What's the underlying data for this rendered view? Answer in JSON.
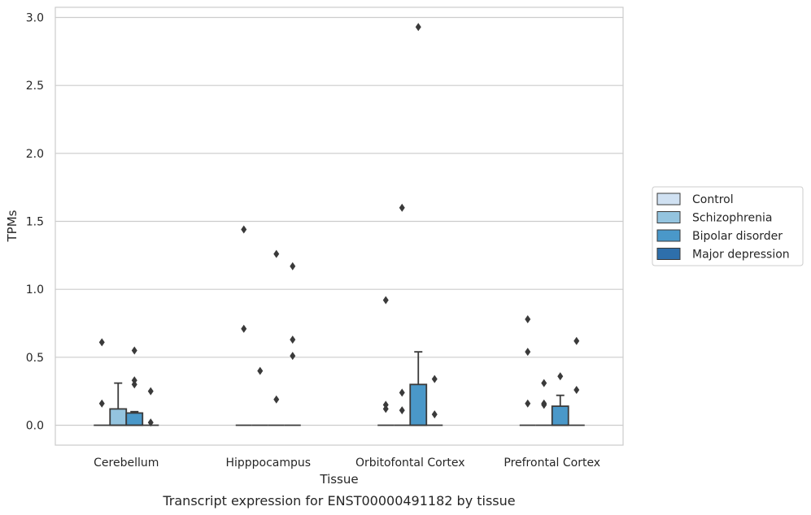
{
  "chart_data": {
    "type": "box",
    "title": "",
    "caption": "Transcript expression for ENST00000491182 by tissue",
    "xlabel": "Tissue",
    "ylabel": "TPMs",
    "ylim": [
      -0.14,
      3.07
    ],
    "yticks": [
      0.0,
      0.5,
      1.0,
      1.5,
      2.0,
      2.5,
      3.0
    ],
    "ytick_labels": [
      "0.0",
      "0.5",
      "1.0",
      "1.5",
      "2.0",
      "2.5",
      "3.0"
    ],
    "grid": "horizontal",
    "legend_position": "right",
    "categories": [
      "Cerebellum",
      "Hipppocampus",
      "Orbitofontal Cortex",
      "Prefrontal Cortex"
    ],
    "series": [
      {
        "name": "Control",
        "color": "#d0e1f2",
        "boxes": [
          {
            "q1": 0,
            "median": 0,
            "q3": 0,
            "whisker_low": 0,
            "whisker_high": 0,
            "outliers": [
              0.61,
              0.16
            ]
          },
          {
            "q1": 0,
            "median": 0,
            "q3": 0,
            "whisker_low": 0,
            "whisker_high": 0,
            "outliers": [
              1.44,
              0.71
            ]
          },
          {
            "q1": 0,
            "median": 0,
            "q3": 0,
            "whisker_low": 0,
            "whisker_high": 0,
            "outliers": [
              0.92,
              0.15,
              0.12
            ]
          },
          {
            "q1": 0,
            "median": 0,
            "q3": 0,
            "whisker_low": 0,
            "whisker_high": 0,
            "outliers": [
              0.78,
              0.54,
              0.16
            ]
          }
        ]
      },
      {
        "name": "Schizophrenia",
        "color": "#94c4df",
        "boxes": [
          {
            "q1": 0,
            "median": 0,
            "q3": 0.12,
            "whisker_low": 0,
            "whisker_high": 0.31,
            "outliers": []
          },
          {
            "q1": 0,
            "median": 0,
            "q3": 0,
            "whisker_low": 0,
            "whisker_high": 0,
            "outliers": [
              0.4
            ]
          },
          {
            "q1": 0,
            "median": 0,
            "q3": 0,
            "whisker_low": 0,
            "whisker_high": 0,
            "outliers": [
              1.6,
              0.24,
              0.11
            ]
          },
          {
            "q1": 0,
            "median": 0,
            "q3": 0,
            "whisker_low": 0,
            "whisker_high": 0,
            "outliers": [
              0.31,
              0.16,
              0.15
            ]
          }
        ]
      },
      {
        "name": "Bipolar disorder",
        "color": "#4a98c9",
        "boxes": [
          {
            "q1": 0,
            "median": 0,
            "q3": 0.09,
            "whisker_low": 0,
            "whisker_high": 0.1,
            "outliers": [
              0.55,
              0.33,
              0.3
            ]
          },
          {
            "q1": 0,
            "median": 0,
            "q3": 0,
            "whisker_low": 0,
            "whisker_high": 0,
            "outliers": [
              1.26,
              0.19
            ]
          },
          {
            "q1": 0,
            "median": 0,
            "q3": 0.3,
            "whisker_low": 0,
            "whisker_high": 0.54,
            "outliers": [
              2.93
            ]
          },
          {
            "q1": 0,
            "median": 0,
            "q3": 0.14,
            "whisker_low": 0,
            "whisker_high": 0.22,
            "outliers": [
              0.36
            ]
          }
        ]
      },
      {
        "name": "Major depression",
        "color": "#2e6fab",
        "boxes": [
          {
            "q1": 0,
            "median": 0,
            "q3": 0,
            "whisker_low": 0,
            "whisker_high": 0,
            "outliers": [
              0.25,
              0.02
            ]
          },
          {
            "q1": 0,
            "median": 0,
            "q3": 0,
            "whisker_low": 0,
            "whisker_high": 0,
            "outliers": [
              1.17,
              0.63,
              0.51
            ]
          },
          {
            "q1": 0,
            "median": 0,
            "q3": 0,
            "whisker_low": 0,
            "whisker_high": 0,
            "outliers": [
              0.34,
              0.08
            ]
          },
          {
            "q1": 0,
            "median": 0,
            "q3": 0,
            "whisker_low": 0,
            "whisker_high": 0,
            "outliers": [
              0.62,
              0.26
            ]
          }
        ]
      }
    ]
  }
}
